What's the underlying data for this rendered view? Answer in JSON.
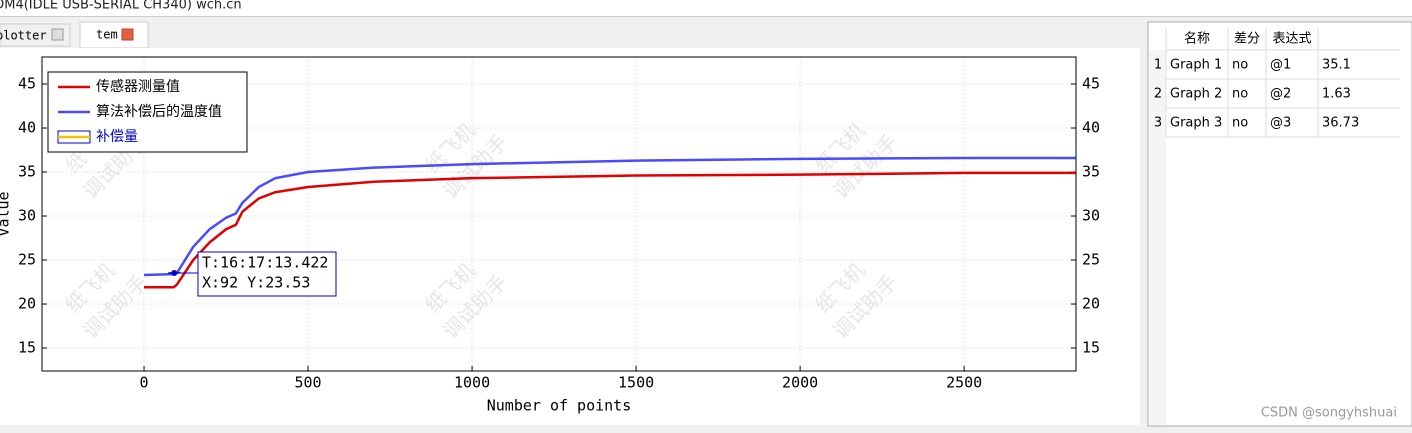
{
  "window_title": "OM4(IDLE  USB-SERIAL CH340) wch.cn",
  "tabs": [
    "plotter",
    "tem"
  ],
  "watermark": [
    "纸飞机",
    "调试助手"
  ],
  "chart_data": {
    "type": "line",
    "x_label": "Number of points",
    "y_label": "Value",
    "x": [
      0,
      90,
      100,
      150,
      200,
      250,
      280,
      300,
      350,
      400,
      500,
      700,
      1000,
      1500,
      2000,
      2500,
      2840
    ],
    "series": [
      {
        "name": "传感器测量值",
        "color": "#e00000",
        "values": [
          21.9,
          21.9,
          22.2,
          25,
          27,
          28.5,
          29,
          30.5,
          32,
          32.7,
          33.3,
          33.9,
          34.3,
          34.6,
          34.7,
          34.9,
          34.9
        ]
      },
      {
        "name": "算法补偿后的温度值",
        "color": "#4a4aff",
        "values": [
          23.3,
          23.4,
          23.5,
          26.5,
          28.5,
          29.8,
          30.3,
          31.5,
          33.3,
          34.3,
          35,
          35.5,
          35.9,
          36.3,
          36.5,
          36.6,
          36.6
        ]
      },
      {
        "name": "补偿量",
        "color": "#f5c400",
        "values": [
          null,
          null,
          null,
          null,
          null,
          null,
          null,
          null,
          null,
          null,
          null,
          null,
          null,
          null,
          null,
          null,
          null
        ]
      }
    ],
    "xlim": [
      -311,
      2841
    ],
    "ylim": [
      12.39,
      48.07
    ],
    "xticks": [
      0,
      500,
      1000,
      1500,
      2000,
      2500
    ],
    "yticks": [
      15,
      20,
      25,
      30,
      35,
      40,
      45
    ],
    "grid": true,
    "legend": "top-left",
    "tooltip": {
      "time": "T:16:17:13.422",
      "text": "X:92 Y:23.53",
      "x": 92,
      "y": 23.53
    }
  },
  "table": {
    "header": [
      "名称",
      "差分",
      "表达式"
    ],
    "rows": [
      [
        "1",
        "Graph 1",
        "no",
        "@1",
        "35.1"
      ],
      [
        "2",
        "Graph 2",
        "no",
        "@2",
        "1.63"
      ],
      [
        "3",
        "Graph 3",
        "no",
        "@3",
        "36.73"
      ]
    ]
  },
  "credit": "CSDN @songyhshuai"
}
